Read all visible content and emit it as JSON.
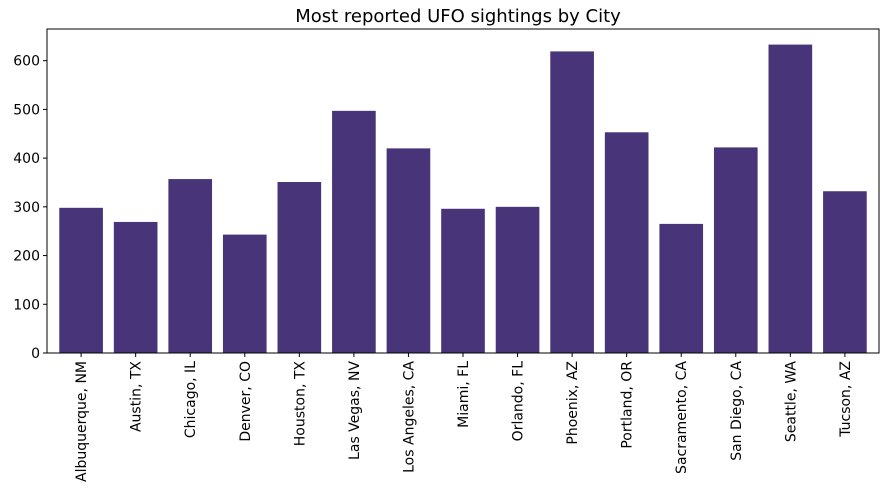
{
  "chart_data": {
    "type": "bar",
    "title": "Most reported UFO sightings by City",
    "xlabel": "",
    "ylabel": "",
    "categories": [
      "Albuquerque, NM",
      "Austin, TX",
      "Chicago, IL",
      "Denver, CO",
      "Houston, TX",
      "Las Vegas, NV",
      "Los Angeles, CA",
      "Miami, FL",
      "Orlando, FL",
      "Phoenix, AZ",
      "Portland, OR",
      "Sacramento, CA",
      "San Diego, CA",
      "Seattle, WA",
      "Tucson, AZ"
    ],
    "values": [
      298,
      269,
      357,
      243,
      351,
      497,
      420,
      296,
      300,
      619,
      453,
      265,
      422,
      633,
      332
    ],
    "ylim": [
      0,
      665
    ],
    "yticks": [
      0,
      100,
      200,
      300,
      400,
      500,
      600
    ],
    "bar_color": "#483479",
    "grid": false,
    "legend": "none"
  }
}
